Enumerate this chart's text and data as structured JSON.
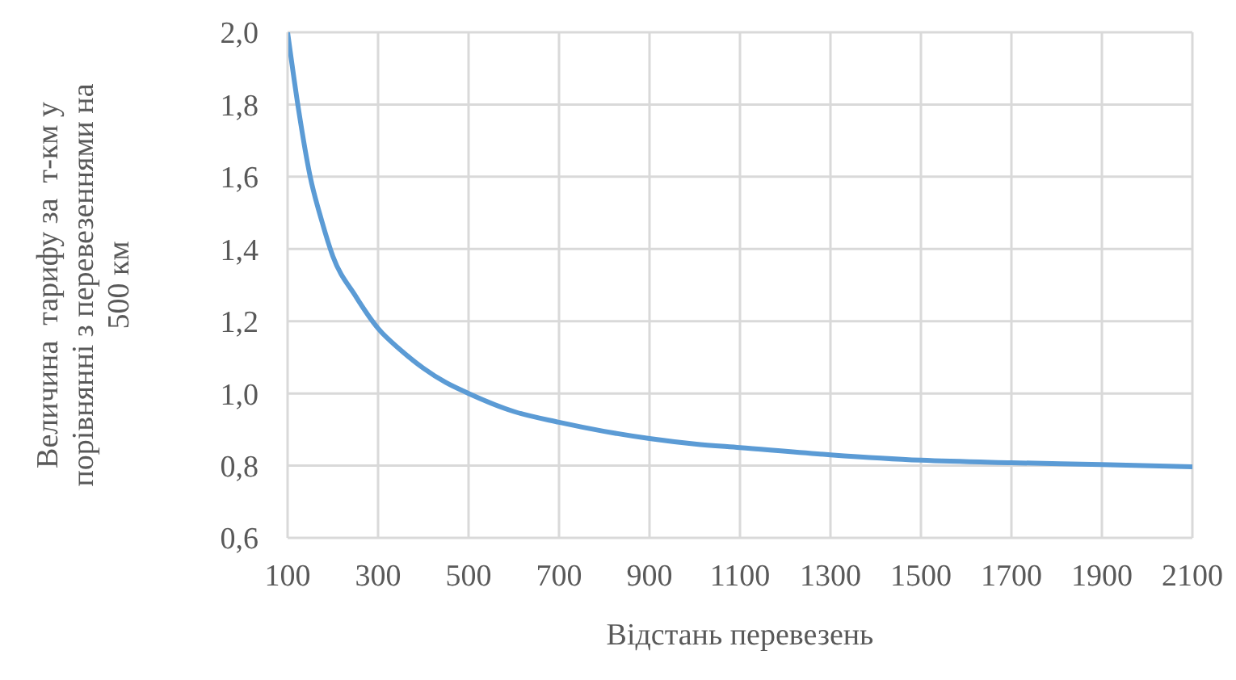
{
  "chart_data": {
    "type": "line",
    "xlabel": "Відстань перевезень",
    "ylabel": "Величина  тарифу за  т-км у\nпорівнянні з перевезеннями на\n500 км",
    "x": [
      100,
      125,
      150,
      175,
      200,
      250,
      300,
      350,
      400,
      450,
      500,
      600,
      700,
      800,
      900,
      1000,
      1100,
      1300,
      1500,
      1700,
      1900,
      2100
    ],
    "series": [
      {
        "color": "#5b9bd5",
        "values": [
          2.0,
          1.78,
          1.6,
          1.48,
          1.38,
          1.27,
          1.18,
          1.12,
          1.07,
          1.03,
          1.0,
          0.95,
          0.92,
          0.895,
          0.875,
          0.86,
          0.85,
          0.83,
          0.815,
          0.808,
          0.803,
          0.797
        ]
      }
    ],
    "xlim": [
      100,
      2100
    ],
    "xticks": [
      100,
      300,
      500,
      700,
      900,
      1100,
      1300,
      1500,
      1700,
      1900,
      2100
    ],
    "ylim": [
      0.6,
      2.0
    ],
    "yticks": [
      {
        "value": 0.6,
        "label": "0,6"
      },
      {
        "value": 0.8,
        "label": "0,8"
      },
      {
        "value": 1.0,
        "label": "1,0"
      },
      {
        "value": 1.2,
        "label": "1,2"
      },
      {
        "value": 1.4,
        "label": "1,4"
      },
      {
        "value": 1.6,
        "label": "1,6"
      },
      {
        "value": 1.8,
        "label": "1,8"
      },
      {
        "value": 2.0,
        "label": "2,0"
      }
    ],
    "grid": true,
    "legend": false,
    "marker": "none",
    "line_style": "solid"
  }
}
